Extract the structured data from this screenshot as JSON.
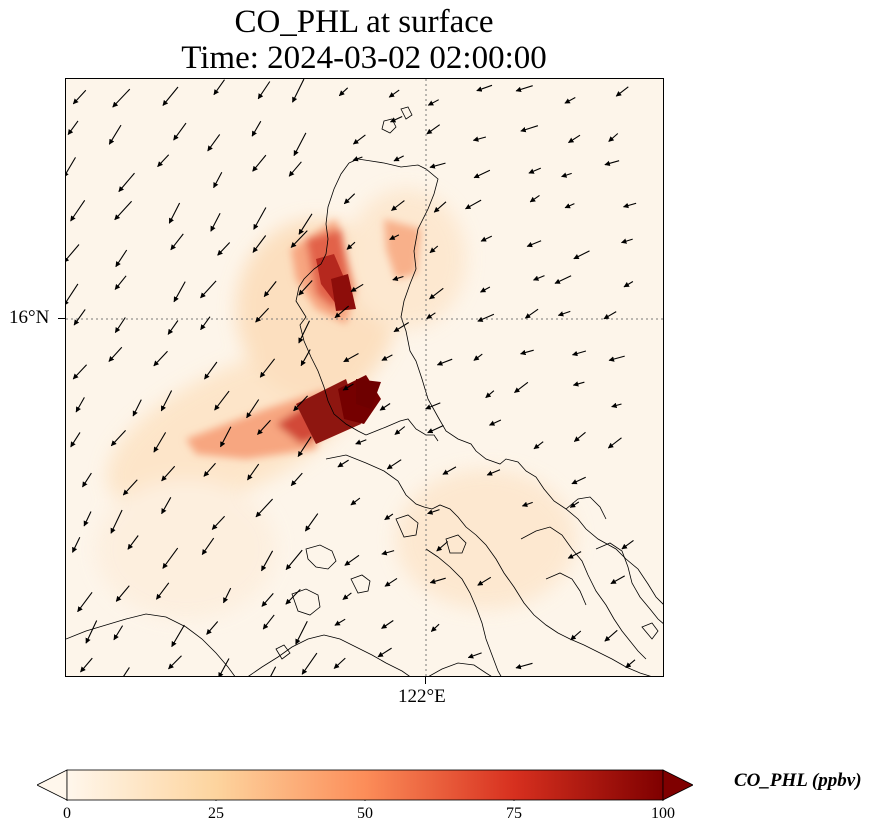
{
  "title": {
    "line1": "CO_PHL at surface",
    "line2": "Time: 2024-03-02 02:00:00"
  },
  "map": {
    "lat_label": "16°N",
    "lon_label": "122°E",
    "gridlines": "dotted",
    "colormap": "OrRd-like (cream to dark red)"
  },
  "colorbar": {
    "label": "CO_PHL (ppbv)",
    "ticks": [
      "0",
      "25",
      "50",
      "75",
      "100"
    ],
    "min": 0,
    "max": 100,
    "extend": "both",
    "colors": [
      "#fff7ec",
      "#fdd49e",
      "#fc8d59",
      "#d7301f",
      "#7f0000"
    ]
  },
  "icons": {
    "wind_vectors": "wind-arrow-icon"
  }
}
